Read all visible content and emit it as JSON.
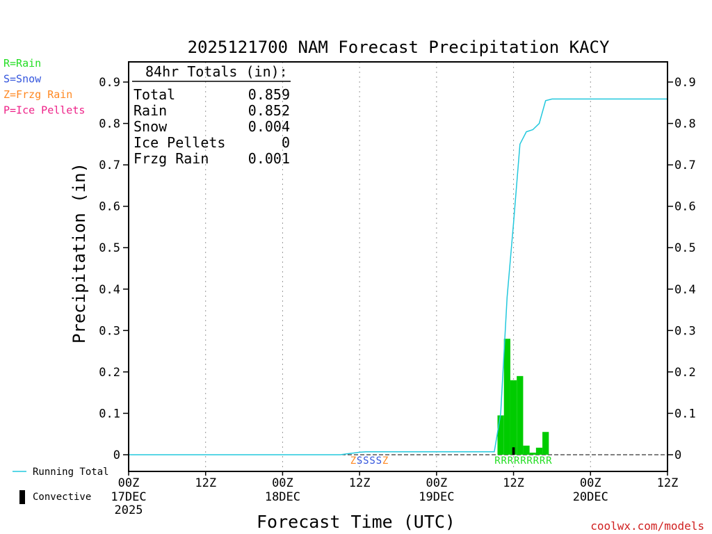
{
  "chart_data": {
    "type": "bar",
    "title": "2025121700 NAM Forecast Precipitation KACY",
    "xlabel": "Forecast Time (UTC)",
    "ylabel": "Precipitation (in)",
    "watermark": "coolwx.com/models",
    "x_unit": "forecast hour",
    "xlim": [
      0,
      84
    ],
    "ylim": [
      -0.04,
      0.95
    ],
    "y_ticks": [
      0,
      0.1,
      0.2,
      0.3,
      0.4,
      0.5,
      0.6,
      0.7,
      0.8,
      0.9
    ],
    "y_tick_labels": [
      "0",
      "0.1",
      "0.2",
      "0.3",
      "0.4",
      "0.5",
      "0.6",
      "0.7",
      "0.8",
      "0.9"
    ],
    "x_ticks": [
      {
        "hour": 0,
        "label": "00Z",
        "day": "17DEC",
        "year": "2025"
      },
      {
        "hour": 12,
        "label": "12Z",
        "day": "",
        "year": ""
      },
      {
        "hour": 24,
        "label": "00Z",
        "day": "18DEC",
        "year": ""
      },
      {
        "hour": 36,
        "label": "12Z",
        "day": "",
        "year": ""
      },
      {
        "hour": 48,
        "label": "00Z",
        "day": "19DEC",
        "year": ""
      },
      {
        "hour": 60,
        "label": "12Z",
        "day": "",
        "year": ""
      },
      {
        "hour": 72,
        "label": "00Z",
        "day": "20DEC",
        "year": ""
      },
      {
        "hour": 84,
        "label": "12Z",
        "day": "",
        "year": ""
      }
    ],
    "grid": {
      "vertical_dotted": true,
      "horizontal": false
    },
    "legend": {
      "placement": "left",
      "ptype_entries": [
        {
          "text": "R=Rain",
          "color": "#22dd22"
        },
        {
          "text": "S=Snow",
          "color": "#3355dd"
        },
        {
          "text": "Z=Frzg Rain",
          "color": "#ff8822"
        },
        {
          "text": "P=Ice Pellets",
          "color": "#ee2288"
        }
      ],
      "line_entries": [
        {
          "text": "Running Total",
          "color": "#22c8dd",
          "kind": "line"
        },
        {
          "text": "Convective",
          "color": "#000000",
          "kind": "bar"
        }
      ]
    },
    "totals_box": {
      "heading": "84hr Totals (in):",
      "rows": [
        {
          "label": "Total",
          "value": "0.859"
        },
        {
          "label": "Rain",
          "value": "0.852"
        },
        {
          "label": "Snow",
          "value": "0.004"
        },
        {
          "label": "Ice Pellets",
          "value": "0"
        },
        {
          "label": "Frzg Rain",
          "value": "0.001"
        }
      ]
    },
    "series": [
      {
        "name": "Running Total",
        "kind": "line",
        "color": "#22c8dd",
        "x": [
          0,
          33,
          34,
          35,
          36,
          37,
          38,
          39,
          57,
          58,
          59,
          60,
          61,
          62,
          63,
          64,
          65,
          66,
          84
        ],
        "y": [
          0,
          0,
          0.002,
          0.004,
          0.006,
          0.007,
          0.007,
          0.007,
          0.007,
          0.1,
          0.38,
          0.56,
          0.75,
          0.78,
          0.785,
          0.8,
          0.855,
          0.859,
          0.859
        ]
      },
      {
        "name": "Precipitation",
        "kind": "bar",
        "color": "#00cc00",
        "bar_width_hours": 1,
        "x": [
          58,
          59,
          60,
          61,
          62,
          63,
          64,
          65
        ],
        "y": [
          0.095,
          0.28,
          0.18,
          0.19,
          0.022,
          0.005,
          0.017,
          0.055
        ]
      },
      {
        "name": "Convective",
        "kind": "bar",
        "color": "#000000",
        "bar_width_hours": 0.4,
        "x": [
          60
        ],
        "y": [
          0.018
        ]
      }
    ],
    "ptype_markers": [
      {
        "hour": 35,
        "letter": "Z",
        "color": "#ff8822"
      },
      {
        "hour": 36,
        "letter": "S",
        "color": "#3355dd"
      },
      {
        "hour": 37,
        "letter": "S",
        "color": "#3355dd"
      },
      {
        "hour": 38,
        "letter": "S",
        "color": "#3355dd"
      },
      {
        "hour": 39,
        "letter": "S",
        "color": "#3355dd"
      },
      {
        "hour": 40,
        "letter": "Z",
        "color": "#ff8822"
      },
      {
        "hour": 57.5,
        "letter": "R",
        "color": "#22dd22"
      },
      {
        "hour": 58.5,
        "letter": "R",
        "color": "#22dd22"
      },
      {
        "hour": 59.5,
        "letter": "R",
        "color": "#22dd22"
      },
      {
        "hour": 60.5,
        "letter": "R",
        "color": "#22dd22"
      },
      {
        "hour": 61.5,
        "letter": "R",
        "color": "#22dd22"
      },
      {
        "hour": 62.5,
        "letter": "R",
        "color": "#22dd22"
      },
      {
        "hour": 63.5,
        "letter": "R",
        "color": "#22dd22"
      },
      {
        "hour": 64.5,
        "letter": "R",
        "color": "#22dd22"
      },
      {
        "hour": 65.5,
        "letter": "R",
        "color": "#22dd22"
      }
    ]
  }
}
